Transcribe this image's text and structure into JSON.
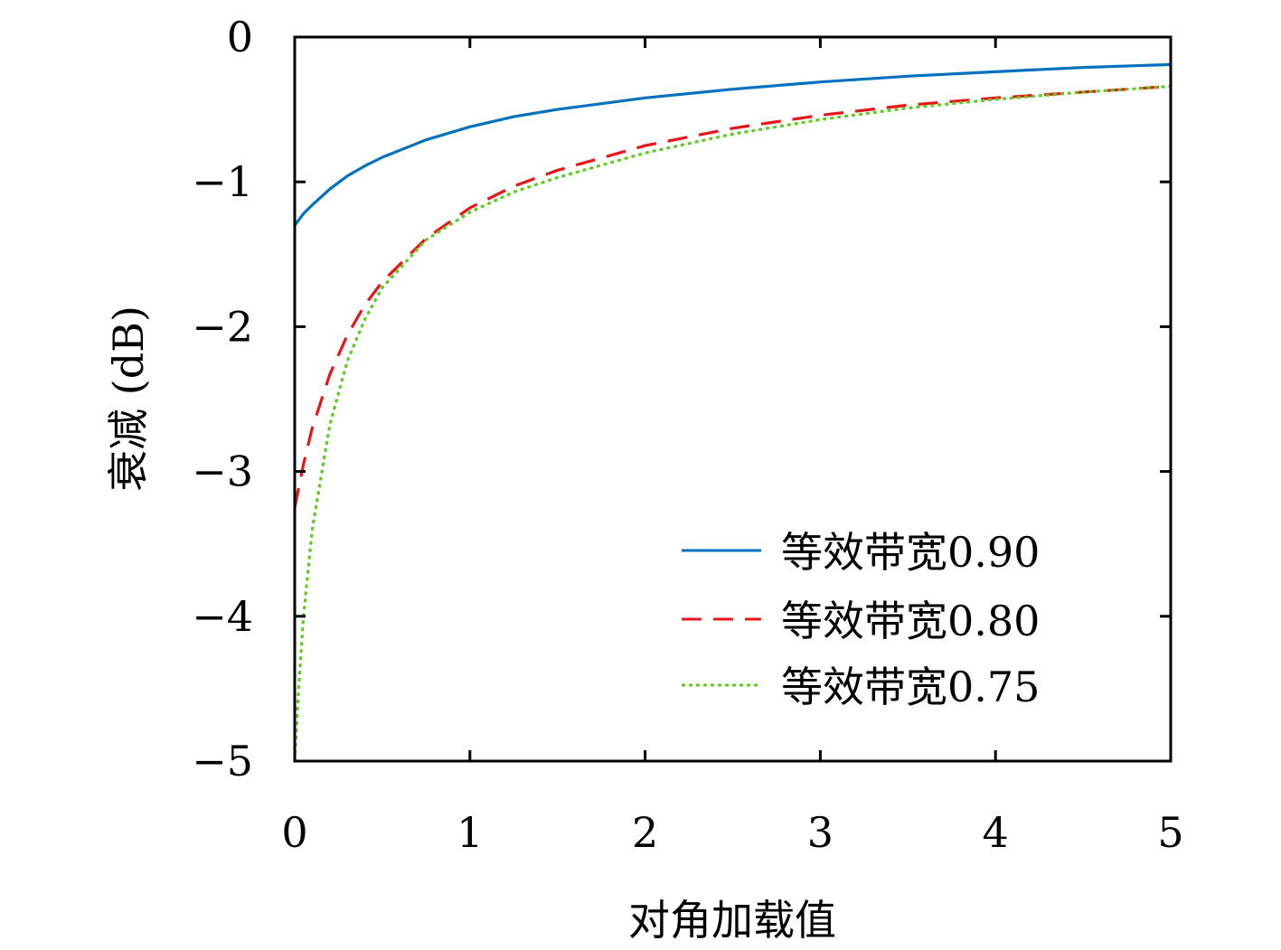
{
  "chart_data": {
    "type": "line",
    "xlabel": "对角加载值",
    "ylabel": "衰减 (dB)",
    "xlim": [
      0,
      5
    ],
    "ylim": [
      -5,
      0
    ],
    "xticks": [
      "0",
      "1",
      "2",
      "3",
      "4",
      "5"
    ],
    "yticks": [
      "0",
      "−1",
      "−2",
      "−3",
      "−4",
      "−5"
    ],
    "grid": false,
    "legend_position": "bottom-right",
    "series": [
      {
        "name": "等效带宽0.90",
        "color": "#0072BD",
        "style": "solid",
        "x": [
          0,
          0.05,
          0.1,
          0.2,
          0.3,
          0.4,
          0.5,
          0.75,
          1,
          1.25,
          1.5,
          2,
          2.5,
          3,
          3.5,
          4,
          4.5,
          5
        ],
        "y": [
          -1.3,
          -1.22,
          -1.16,
          -1.05,
          -0.96,
          -0.89,
          -0.83,
          -0.71,
          -0.62,
          -0.55,
          -0.5,
          -0.42,
          -0.36,
          -0.31,
          -0.27,
          -0.24,
          -0.21,
          -0.19
        ]
      },
      {
        "name": "等效带宽0.80",
        "color": "#E8161B",
        "style": "dashed",
        "x": [
          0,
          0.05,
          0.1,
          0.2,
          0.3,
          0.4,
          0.5,
          0.75,
          1,
          1.25,
          1.5,
          2,
          2.5,
          3,
          3.5,
          4,
          4.5,
          5
        ],
        "y": [
          -3.25,
          -2.95,
          -2.7,
          -2.33,
          -2.06,
          -1.85,
          -1.69,
          -1.39,
          -1.18,
          -1.03,
          -0.92,
          -0.75,
          -0.63,
          -0.54,
          -0.47,
          -0.42,
          -0.38,
          -0.34
        ]
      },
      {
        "name": "等效带宽0.75",
        "color": "#5ECC1E",
        "style": "dotted",
        "x": [
          0,
          0.02,
          0.05,
          0.1,
          0.2,
          0.3,
          0.4,
          0.5,
          0.75,
          1,
          1.25,
          1.5,
          2,
          2.5,
          3,
          3.5,
          4,
          4.5,
          5
        ],
        "y": [
          -5.0,
          -4.55,
          -4.0,
          -3.4,
          -2.68,
          -2.24,
          -1.95,
          -1.73,
          -1.4,
          -1.21,
          -1.07,
          -0.97,
          -0.8,
          -0.67,
          -0.57,
          -0.49,
          -0.43,
          -0.38,
          -0.34
        ]
      }
    ]
  }
}
